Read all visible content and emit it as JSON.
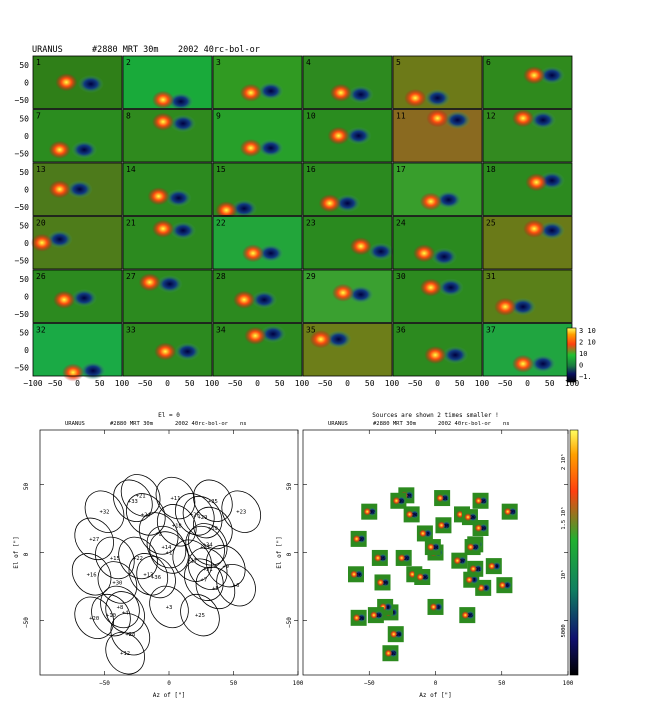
{
  "header": {
    "source": "URANUS",
    "scan": "#2880 MRT 30m",
    "dataset": "2002 40rc-bol-or"
  },
  "grid": {
    "yticks": [
      "50",
      "0",
      "−50"
    ],
    "xticks": [
      "−100",
      "−50",
      "0",
      "50",
      "100"
    ],
    "colorbar_labels": [
      "3 10",
      "2 10",
      "10",
      "0",
      "−1."
    ],
    "panels": [
      {
        "n": "1",
        "bg": "#2f7f18",
        "src": [
          [
            -25,
            0
          ],
          [
            30,
            -5
          ]
        ]
      },
      {
        "n": "2",
        "bg": "#19aa3a",
        "src": [
          [
            -10,
            -50
          ],
          [
            30,
            -55
          ]
        ]
      },
      {
        "n": "3",
        "bg": "#309a22",
        "src": [
          [
            -15,
            -30
          ],
          [
            30,
            -25
          ]
        ]
      },
      {
        "n": "4",
        "bg": "#2d8a1f",
        "src": [
          [
            -15,
            -30
          ],
          [
            30,
            -35
          ]
        ]
      },
      {
        "n": "5",
        "bg": "#6d7a18",
        "src": [
          [
            -50,
            -45
          ],
          [
            0,
            -45
          ]
        ]
      },
      {
        "n": "6",
        "bg": "#2f8a1d",
        "src": [
          [
            15,
            20
          ],
          [
            55,
            20
          ]
        ]
      },
      {
        "n": "7",
        "bg": "#2b8c1f",
        "src": [
          [
            -40,
            -40
          ],
          [
            15,
            -40
          ]
        ]
      },
      {
        "n": "8",
        "bg": "#2f8a1e",
        "src": [
          [
            -10,
            40
          ],
          [
            35,
            35
          ]
        ]
      },
      {
        "n": "9",
        "bg": "#27a02a",
        "src": [
          [
            -15,
            -35
          ],
          [
            30,
            -35
          ]
        ]
      },
      {
        "n": "10",
        "bg": "#2a8c1f",
        "src": [
          [
            -20,
            0
          ],
          [
            25,
            0
          ]
        ]
      },
      {
        "n": "11",
        "bg": "#8a6a20",
        "src": [
          [
            0,
            50
          ],
          [
            45,
            45
          ]
        ]
      },
      {
        "n": "12",
        "bg": "#338a20",
        "src": [
          [
            -10,
            50
          ],
          [
            35,
            45
          ]
        ]
      },
      {
        "n": "13",
        "bg": "#4d7a1b",
        "src": [
          [
            -40,
            0
          ],
          [
            5,
            0
          ]
        ]
      },
      {
        "n": "14",
        "bg": "#2c8a1f",
        "src": [
          [
            -20,
            -20
          ],
          [
            25,
            -25
          ]
        ]
      },
      {
        "n": "15",
        "bg": "#2c8a1f",
        "src": [
          [
            -70,
            -60
          ],
          [
            -30,
            -55
          ]
        ]
      },
      {
        "n": "16",
        "bg": "#2b8a1f",
        "src": [
          [
            -40,
            -40
          ],
          [
            0,
            -40
          ]
        ]
      },
      {
        "n": "17",
        "bg": "#389e2c",
        "src": [
          [
            -15,
            -35
          ],
          [
            25,
            -30
          ]
        ]
      },
      {
        "n": "18",
        "bg": "#2c8a1f",
        "src": [
          [
            20,
            20
          ],
          [
            55,
            25
          ]
        ]
      },
      {
        "n": "20",
        "bg": "#4e7c1a",
        "src": [
          [
            -80,
            0
          ],
          [
            -40,
            10
          ]
        ]
      },
      {
        "n": "21",
        "bg": "#2c8a1f",
        "src": [
          [
            -10,
            40
          ],
          [
            35,
            35
          ]
        ]
      },
      {
        "n": "22",
        "bg": "#22a53a",
        "src": [
          [
            -10,
            -30
          ],
          [
            30,
            -30
          ]
        ]
      },
      {
        "n": "23",
        "bg": "#2a8a1f",
        "src": [
          [
            30,
            -10
          ],
          [
            75,
            -25
          ]
        ]
      },
      {
        "n": "24",
        "bg": "#2a8a1f",
        "src": [
          [
            -30,
            -30
          ],
          [
            15,
            -40
          ]
        ]
      },
      {
        "n": "25",
        "bg": "#6a7a18",
        "src": [
          [
            15,
            40
          ],
          [
            55,
            35
          ]
        ]
      },
      {
        "n": "26",
        "bg": "#2c8a1f",
        "src": [
          [
            -30,
            -10
          ],
          [
            15,
            -5
          ]
        ]
      },
      {
        "n": "27",
        "bg": "#2c8a1f",
        "src": [
          [
            -40,
            40
          ],
          [
            5,
            35
          ]
        ]
      },
      {
        "n": "28",
        "bg": "#2c8a1f",
        "src": [
          [
            -30,
            -10
          ],
          [
            15,
            -10
          ]
        ]
      },
      {
        "n": "29",
        "bg": "#3aa030",
        "src": [
          [
            -10,
            10
          ],
          [
            30,
            5
          ]
        ]
      },
      {
        "n": "30",
        "bg": "#2c8a1f",
        "src": [
          [
            -15,
            25
          ],
          [
            30,
            25
          ]
        ]
      },
      {
        "n": "31",
        "bg": "#5a8019",
        "src": [
          [
            -50,
            -30
          ],
          [
            -10,
            -30
          ]
        ]
      },
      {
        "n": "32",
        "bg": "#1aaa45",
        "src": [
          [
            -10,
            -65
          ],
          [
            35,
            -60
          ]
        ]
      },
      {
        "n": "33",
        "bg": "#2c8a1f",
        "src": [
          [
            -5,
            -5
          ],
          [
            45,
            -5
          ]
        ]
      },
      {
        "n": "34",
        "bg": "#2c8a1f",
        "src": [
          [
            -5,
            40
          ],
          [
            35,
            45
          ]
        ]
      },
      {
        "n": "35",
        "bg": "#6d7e19",
        "src": [
          [
            -60,
            30
          ],
          [
            -20,
            30
          ]
        ]
      },
      {
        "n": "36",
        "bg": "#2c8a1f",
        "src": [
          [
            -5,
            -15
          ],
          [
            40,
            -15
          ]
        ]
      },
      {
        "n": "37",
        "bg": "#20a540",
        "src": [
          [
            -10,
            -40
          ],
          [
            35,
            -40
          ]
        ]
      }
    ]
  },
  "left_plot": {
    "title": "El = 0",
    "subtitle_source": "URANUS",
    "subtitle_scan": "#2880 MRT 30m",
    "subtitle_dataset": "2002 40rc-bol-or",
    "subtitle_unit": "ns",
    "xlabel": "Az of [\"]",
    "ylabel": "El of [\"]",
    "xlim": [
      -100,
      100
    ],
    "ylim": [
      -90,
      90
    ],
    "xticks": [
      "−50",
      "0",
      "50",
      "100"
    ],
    "yticks": [
      "50",
      "0",
      "−50"
    ]
  },
  "right_plot": {
    "title": "Sources are shown 2 times smaller !",
    "subtitle_source": "URANUS",
    "subtitle_scan": "#2880 MRT 30m",
    "subtitle_dataset": "2002 40rc-bol-or",
    "subtitle_unit": "ns",
    "xlabel": "Az of [\"]",
    "ylabel": "El of [\"]",
    "xlim": [
      -100,
      100
    ],
    "ylim": [
      -90,
      90
    ],
    "xticks": [
      "−50",
      "0",
      "50",
      "100"
    ],
    "yticks": [
      "50",
      "0",
      "−50"
    ],
    "colorbar_labels": [
      "2 10⁵",
      "1.5 10⁵",
      "10⁵",
      "5000"
    ]
  },
  "chart_data": {
    "type": "scatter",
    "title": "El = 0",
    "xlabel": "Az of [\"]",
    "ylabel": "El of [\"]",
    "xlim": [
      -100,
      100
    ],
    "ylim": [
      -90,
      90
    ],
    "beams": [
      {
        "label": "1",
        "x": 0,
        "y": 0
      },
      {
        "label": "2",
        "x": -8,
        "y": 14
      },
      {
        "label": "3",
        "x": 0,
        "y": -40
      },
      {
        "label": "4",
        "x": -34,
        "y": -44
      },
      {
        "label": "5",
        "x": 36,
        "y": -26
      },
      {
        "label": "6",
        "x": 52,
        "y": -24
      },
      {
        "label": "7",
        "x": 27,
        "y": -20
      },
      {
        "label": "8",
        "x": -38,
        "y": -40
      },
      {
        "label": "9",
        "x": 44,
        "y": -10
      },
      {
        "label": "10",
        "x": -45,
        "y": -46
      },
      {
        "label": "11",
        "x": 5,
        "y": 40
      },
      {
        "label": "12",
        "x": -34,
        "y": -74
      },
      {
        "label": "13",
        "x": -16,
        "y": -16
      },
      {
        "label": "14",
        "x": -2,
        "y": 4
      },
      {
        "label": "15",
        "x": -42,
        "y": -4
      },
      {
        "label": "16",
        "x": -60,
        "y": -16
      },
      {
        "label": "17",
        "x": 18,
        "y": -6
      },
      {
        "label": "18",
        "x": 6,
        "y": 20
      },
      {
        "label": "19",
        "x": 34,
        "y": 18
      },
      {
        "label": "20",
        "x": -58,
        "y": -48
      },
      {
        "label": "21",
        "x": -22,
        "y": 42
      },
      {
        "label": "22",
        "x": -24,
        "y": -4
      },
      {
        "label": "23",
        "x": 56,
        "y": 30
      },
      {
        "label": "24",
        "x": -18,
        "y": 28
      },
      {
        "label": "25",
        "x": 24,
        "y": -46
      },
      {
        "label": "26",
        "x": 20,
        "y": 28
      },
      {
        "label": "27",
        "x": -58,
        "y": 10
      },
      {
        "label": "28",
        "x": -30,
        "y": -60
      },
      {
        "label": "29",
        "x": 26,
        "y": 26
      },
      {
        "label": "30",
        "x": -40,
        "y": -22
      },
      {
        "label": "31",
        "x": 30,
        "y": -12
      },
      {
        "label": "32",
        "x": -50,
        "y": 30
      },
      {
        "label": "33",
        "x": -28,
        "y": 38
      },
      {
        "label": "34",
        "x": 30,
        "y": 6
      },
      {
        "label": "35",
        "x": 34,
        "y": 38
      },
      {
        "label": "36",
        "x": -10,
        "y": -18
      },
      {
        "label": "37",
        "x": 28,
        "y": 4
      }
    ]
  }
}
